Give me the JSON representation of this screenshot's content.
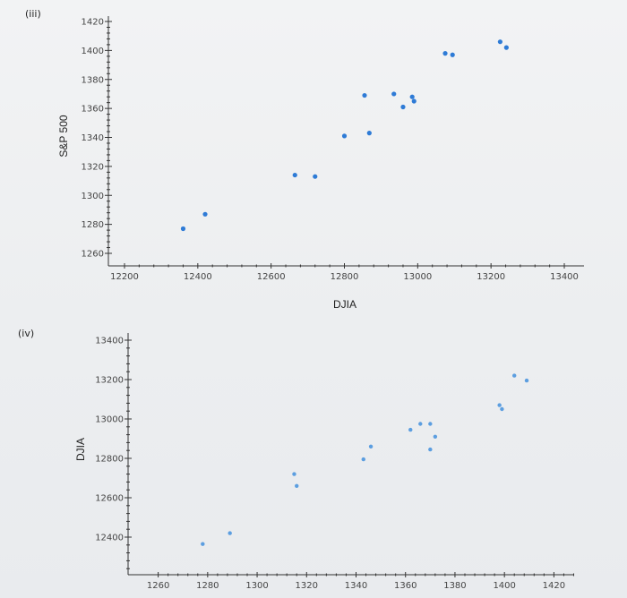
{
  "chart_data": [
    {
      "type": "scatter",
      "panel_label": "(iii)",
      "title": "",
      "xlabel": "DJIA",
      "ylabel": "S&P 500",
      "xlim": [
        12200,
        13400
      ],
      "ylim": [
        1260,
        1420
      ],
      "x_ticks": [
        12200,
        12400,
        12600,
        12800,
        13000,
        13200,
        13400
      ],
      "y_ticks": [
        1260,
        1280,
        1300,
        1320,
        1340,
        1360,
        1380,
        1400,
        1420
      ],
      "grid": false,
      "color": "#2e7bd6",
      "points": [
        {
          "x": 12360,
          "y": 1277
        },
        {
          "x": 12420,
          "y": 1287
        },
        {
          "x": 12665,
          "y": 1314
        },
        {
          "x": 12720,
          "y": 1313
        },
        {
          "x": 12800,
          "y": 1341
        },
        {
          "x": 12855,
          "y": 1369
        },
        {
          "x": 12868,
          "y": 1343
        },
        {
          "x": 12935,
          "y": 1370
        },
        {
          "x": 12960,
          "y": 1361
        },
        {
          "x": 12985,
          "y": 1368
        },
        {
          "x": 12990,
          "y": 1365
        },
        {
          "x": 13075,
          "y": 1398
        },
        {
          "x": 13095,
          "y": 1397
        },
        {
          "x": 13225,
          "y": 1406
        },
        {
          "x": 13242,
          "y": 1402
        }
      ]
    },
    {
      "type": "scatter",
      "panel_label": "(iv)",
      "title": "",
      "xlabel": "",
      "ylabel": "DJIA",
      "xlim": [
        1250,
        1430
      ],
      "ylim": [
        12200,
        13400
      ],
      "x_ticks": [
        1260,
        1280,
        1300,
        1320,
        1340,
        1360,
        1380,
        1400,
        1420
      ],
      "y_ticks": [
        12400,
        12600,
        12800,
        13000,
        13200,
        13400
      ],
      "grid": false,
      "color": "#5c9ee0",
      "points": [
        {
          "x": 1278,
          "y": 12365
        },
        {
          "x": 1289,
          "y": 12420
        },
        {
          "x": 1315,
          "y": 12720
        },
        {
          "x": 1316,
          "y": 12660
        },
        {
          "x": 1343,
          "y": 12795
        },
        {
          "x": 1346,
          "y": 12860
        },
        {
          "x": 1362,
          "y": 12945
        },
        {
          "x": 1366,
          "y": 12975
        },
        {
          "x": 1370,
          "y": 12975
        },
        {
          "x": 1370,
          "y": 12845
        },
        {
          "x": 1372,
          "y": 12910
        },
        {
          "x": 1398,
          "y": 13070
        },
        {
          "x": 1399,
          "y": 13050
        },
        {
          "x": 1404,
          "y": 13220
        },
        {
          "x": 1409,
          "y": 13195
        }
      ]
    }
  ]
}
